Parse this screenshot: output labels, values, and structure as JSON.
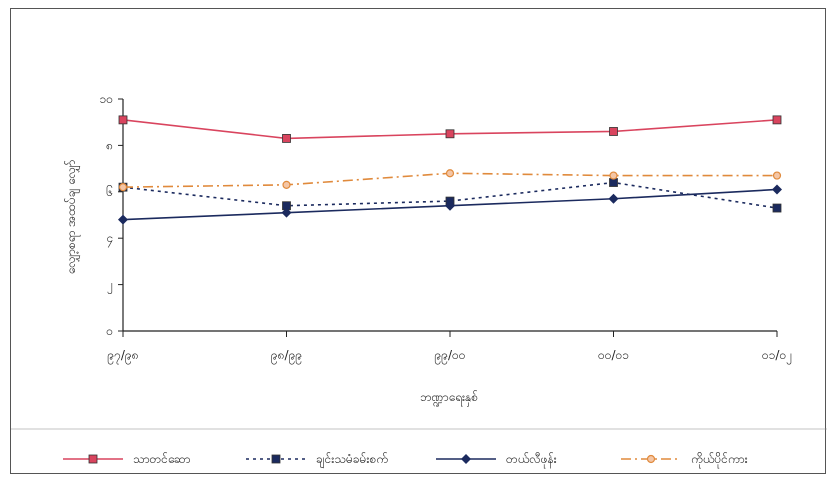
{
  "chart_data": {
    "type": "line",
    "title": "",
    "xlabel": "ဘဏ္ဍာရေးနှစ်",
    "ylabel": "လျှော့စရာ အထပ်ချ လျှော်",
    "categories": [
      "၉၇/၉၈",
      "၉၈/၉၉",
      "၉၉/၀၀",
      "၀၀/၀၁",
      "၀၁/၀၂"
    ],
    "ylim": [
      0,
      10
    ],
    "yticks": [
      0,
      2,
      4,
      6,
      8,
      10
    ],
    "ytick_labels": [
      "၀",
      "၂",
      "၄",
      "၆",
      "၈",
      "၁၀"
    ],
    "grid": false,
    "legend_position": "bottom",
    "series": [
      {
        "name": "သာတင်ဆော",
        "values": [
          9.1,
          8.3,
          8.5,
          8.6,
          9.1
        ],
        "color": "#d9445e",
        "marker": "square",
        "dash": "solid"
      },
      {
        "name": "ချင်းသမံခမ်းစက်",
        "values": [
          6.2,
          5.4,
          5.6,
          6.4,
          5.3
        ],
        "color": "#1b2a5e",
        "marker": "square",
        "dash": "dotted"
      },
      {
        "name": "တယ်လီဖုန်း",
        "values": [
          4.8,
          5.1,
          5.4,
          5.7,
          6.1
        ],
        "color": "#1b2a5e",
        "marker": "diamond",
        "dash": "solid"
      },
      {
        "name": "ကိုယ်ပိုင်ကား",
        "values": [
          6.2,
          6.3,
          6.8,
          6.7,
          6.7
        ],
        "color": "#e08a3c",
        "marker": "circle",
        "dash": "dashdot"
      }
    ]
  }
}
